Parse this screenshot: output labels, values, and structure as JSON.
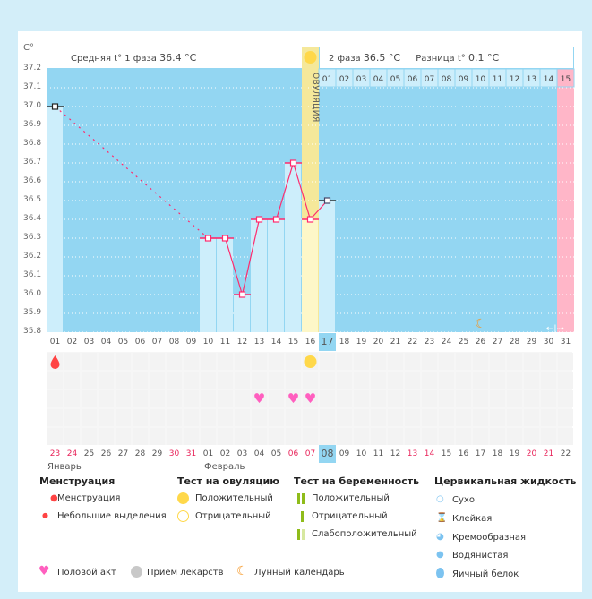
{
  "axis_unit": "C°",
  "y_ticks": [
    "37.2",
    "37.1",
    "37.0",
    "36.9",
    "36.8",
    "36.7",
    "36.6",
    "36.5",
    "36.4",
    "36.3",
    "36.2",
    "36.1",
    "36.0",
    "35.9",
    "35.8"
  ],
  "phase1": {
    "label": "Средняя t° 1 фаза",
    "value": "36.4 °C"
  },
  "phase2": {
    "label": "2 фаза",
    "value": "36.5 °C"
  },
  "diff": {
    "label": "Разница t°",
    "value": "0.1 °C"
  },
  "ovulation_label": "ОВУЛЯЦИЯ",
  "phase2_days": [
    "01",
    "02",
    "03",
    "04",
    "05",
    "06",
    "07",
    "08",
    "09",
    "10",
    "11",
    "12",
    "13",
    "14",
    "15"
  ],
  "cycle_days": [
    "01",
    "02",
    "03",
    "04",
    "05",
    "06",
    "07",
    "08",
    "09",
    "10",
    "11",
    "12",
    "13",
    "14",
    "15",
    "16",
    "17",
    "18",
    "19",
    "20",
    "21",
    "22",
    "23",
    "24",
    "25",
    "26",
    "27",
    "28",
    "29",
    "30",
    "31"
  ],
  "current_cycle_day": "17",
  "dates": [
    {
      "d": "23",
      "weekend": true
    },
    {
      "d": "24",
      "weekend": true
    },
    {
      "d": "25"
    },
    {
      "d": "26"
    },
    {
      "d": "27"
    },
    {
      "d": "28"
    },
    {
      "d": "29"
    },
    {
      "d": "30",
      "weekend": true
    },
    {
      "d": "31",
      "weekend": true
    },
    {
      "d": "01"
    },
    {
      "d": "02"
    },
    {
      "d": "03"
    },
    {
      "d": "04"
    },
    {
      "d": "05"
    },
    {
      "d": "06",
      "weekend": true
    },
    {
      "d": "07",
      "weekend": true
    },
    {
      "d": "08",
      "today": true
    },
    {
      "d": "09"
    },
    {
      "d": "10"
    },
    {
      "d": "11"
    },
    {
      "d": "12"
    },
    {
      "d": "13",
      "weekend": true
    },
    {
      "d": "14",
      "weekend": true
    },
    {
      "d": "15"
    },
    {
      "d": "16"
    },
    {
      "d": "17"
    },
    {
      "d": "18"
    },
    {
      "d": "19"
    },
    {
      "d": "20",
      "weekend": true
    },
    {
      "d": "21",
      "weekend": true
    },
    {
      "d": "22"
    }
  ],
  "months": [
    "Январь",
    "Февраль"
  ],
  "chart_data": {
    "type": "line",
    "ylim": [
      35.8,
      37.2
    ],
    "x": [
      1,
      10,
      11,
      12,
      13,
      14,
      15,
      16,
      17
    ],
    "values": [
      37.0,
      36.3,
      36.3,
      36.0,
      36.4,
      36.4,
      36.7,
      36.4,
      36.5
    ],
    "ovulation_day": 16,
    "predicted_menstruation_day": 31,
    "moon_day": 26
  },
  "events": {
    "menstruation_days": [
      1
    ],
    "ovulation_test_positive_days": [
      16
    ],
    "intercourse_days": [
      13,
      15,
      16
    ]
  },
  "colors": {
    "chart_bg": "#93d6f2",
    "bar": "#cdeefb",
    "line": "#ff2a6d",
    "ovulation": "#f5e89a",
    "pink": "#ffb6c8",
    "weekend": "#e8245a"
  },
  "legend": {
    "menstruation": {
      "title": "Менструация",
      "items": [
        "Менструация",
        "Небольшие выделения"
      ]
    },
    "ovulation_test": {
      "title": "Тест на овуляцию",
      "items": [
        "Положительный",
        "Отрицательный"
      ]
    },
    "pregnancy_test": {
      "title": "Тест на беременность",
      "items": [
        "Положительный",
        "Отрицательный",
        "Слабоположительный"
      ]
    },
    "cervical": {
      "title": "Цервикальная жидкость",
      "items": [
        "Сухо",
        "Клейкая",
        "Кремообразная",
        "Водянистая",
        "Яичный белок"
      ]
    },
    "other": [
      "Половой акт",
      "Прием лекарств",
      "Лунный календарь"
    ]
  }
}
